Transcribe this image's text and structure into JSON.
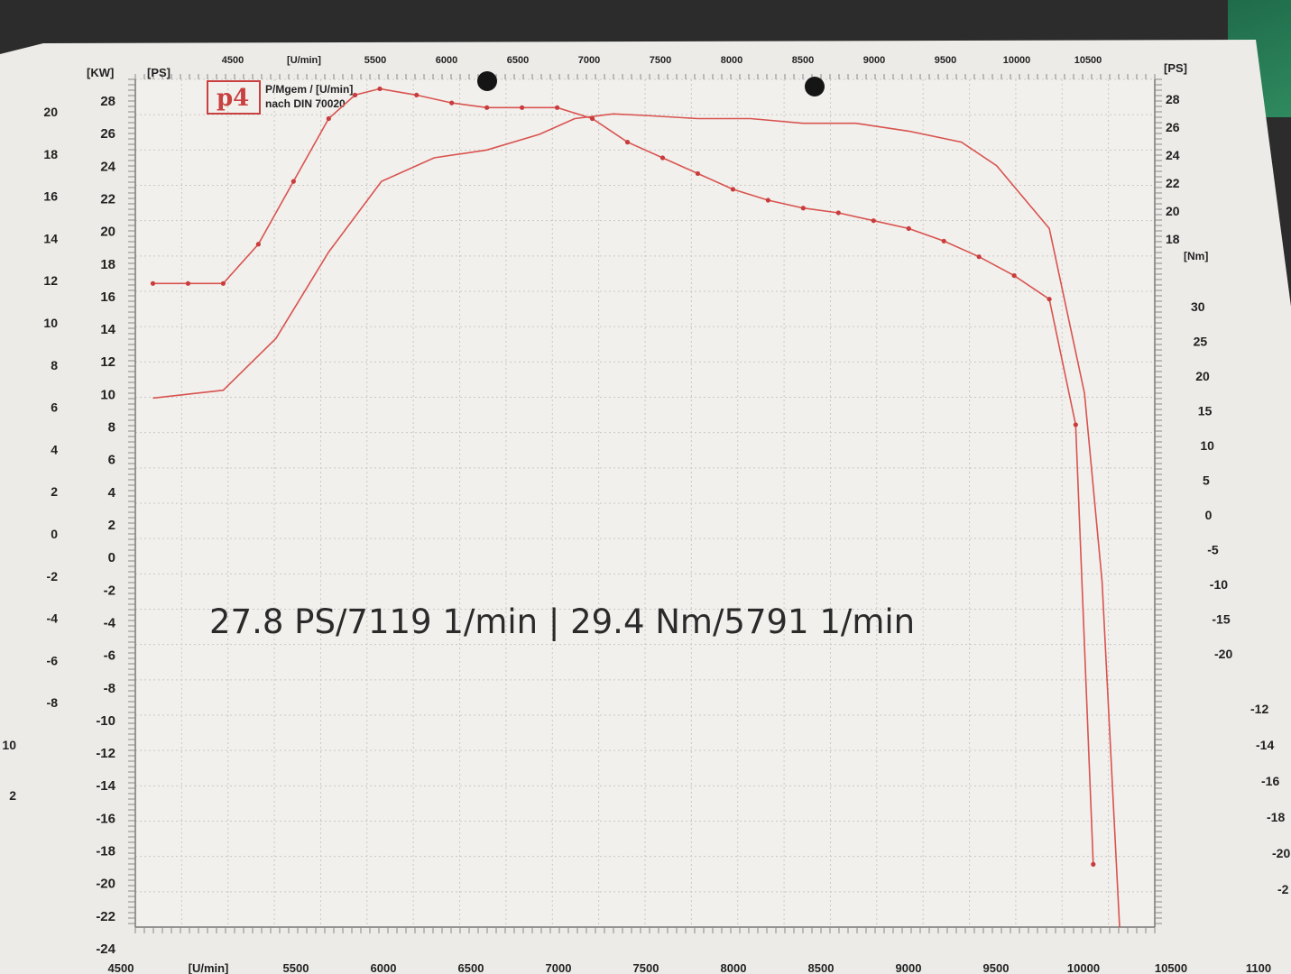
{
  "header": {
    "logo_text": "p4",
    "legend_line1": "P/Mgem / [U/min]",
    "legend_line2": "nach DIN 70020"
  },
  "annotation": "27.8 PS/7119 1/min | 29.4 Nm/5791 1/min",
  "axes": {
    "left_kw_unit": "[KW]",
    "left_ps_unit": "[PS]",
    "right_ps_unit": "[PS]",
    "right_nm_unit": "[Nm]",
    "rpm_unit": "[U/min]",
    "kw_ticks": [
      "20",
      "18",
      "16",
      "14",
      "12",
      "10",
      "8",
      "6",
      "4",
      "2",
      "0",
      "-2",
      "-4",
      "-6",
      "-8",
      "10",
      "2"
    ],
    "ps_left_ticks": [
      "28",
      "26",
      "24",
      "22",
      "20",
      "18",
      "16",
      "14",
      "12",
      "10",
      "8",
      "6",
      "4",
      "2",
      "0",
      "-2",
      "-4",
      "-6",
      "-8",
      "-10",
      "-12",
      "-14",
      "-16",
      "-18",
      "-20",
      "-22",
      "-24"
    ],
    "ps_right_ticks": [
      "28",
      "26",
      "24",
      "22",
      "20",
      "18"
    ],
    "nm_ticks": [
      "30",
      "25",
      "20",
      "15",
      "10",
      "5",
      "0",
      "-5",
      "-10",
      "-15",
      "-20"
    ],
    "right_lower_ticks": [
      "-12",
      "-14",
      "-16",
      "-18",
      "-20",
      "-2"
    ],
    "rpm_ticks": [
      "4500",
      "[U/min]",
      "5500",
      "6000",
      "6500",
      "7000",
      "7500",
      "8000",
      "8500",
      "9000",
      "9500",
      "10000",
      "10500",
      "1100"
    ]
  },
  "chart_data": {
    "type": "line",
    "title": "",
    "xlabel": "[U/min]",
    "ylabel": "[PS]",
    "series": [
      {
        "name": "P",
        "unit": "PS",
        "color": "#d9534f",
        "x": [
          4500,
          4900,
          5200,
          5500,
          5800,
          6100,
          6400,
          6700,
          6900,
          7119,
          7300,
          7600,
          7900,
          8200,
          8500,
          8800,
          9100,
          9300,
          9600,
          9800,
          9900,
          10000
        ],
        "values": [
          9.7,
          10.2,
          13.5,
          19.0,
          23.5,
          25.0,
          25.5,
          26.5,
          27.5,
          27.8,
          27.7,
          27.5,
          27.5,
          27.2,
          27.2,
          26.7,
          26.0,
          24.5,
          20.5,
          10.0,
          -2.0,
          -24.0
        ]
      },
      {
        "name": "Mgem",
        "unit": "Nm",
        "color": "#d9534f",
        "x": [
          4500,
          4700,
          4900,
          5100,
          5300,
          5500,
          5650,
          5791,
          6000,
          6200,
          6400,
          6600,
          6800,
          7000,
          7200,
          7400,
          7600,
          7800,
          8000,
          8200,
          8400,
          8600,
          8800,
          9000,
          9200,
          9400,
          9600,
          9750,
          9850
        ],
        "values": [
          17.0,
          17.0,
          17.0,
          19.5,
          23.5,
          27.5,
          29.0,
          29.4,
          29.0,
          28.5,
          28.2,
          28.2,
          28.2,
          27.5,
          26.0,
          25.0,
          24.0,
          23.0,
          22.3,
          21.8,
          21.5,
          21.0,
          20.5,
          19.7,
          18.7,
          17.5,
          16.0,
          8.0,
          -20.0
        ]
      }
    ]
  }
}
